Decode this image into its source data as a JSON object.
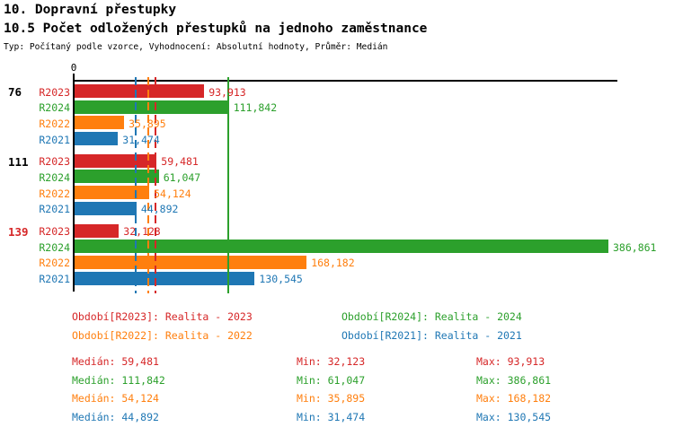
{
  "header": {
    "title1": "10. Dopravní přestupky",
    "title2": "10.5 Počet odložených přestupků na jednoho zaměstnance",
    "meta": "Typ: Počítaný podle vzorce, Vyhodnocení: Absolutní hodnoty, Průměr: Medián"
  },
  "colors": {
    "R2023": "#d62728",
    "R2024": "#2ca02c",
    "R2022": "#ff7f0e",
    "R2021": "#1f77b4",
    "axis": "#000000",
    "group_label_default": "#000000",
    "group_label_alert": "#d62728"
  },
  "chart_data": {
    "type": "bar",
    "orientation": "horizontal",
    "axis_zero_label": "0",
    "series_order": [
      "R2023",
      "R2024",
      "R2022",
      "R2021"
    ],
    "groups": [
      {
        "label": "76",
        "label_color": "#000000",
        "bars": [
          {
            "series": "R2023",
            "value": 93913,
            "display": "93,913"
          },
          {
            "series": "R2024",
            "value": 111842,
            "display": "111,842"
          },
          {
            "series": "R2022",
            "value": 35895,
            "display": "35,895"
          },
          {
            "series": "R2021",
            "value": 31474,
            "display": "31,474"
          }
        ]
      },
      {
        "label": "111",
        "label_color": "#000000",
        "bars": [
          {
            "series": "R2023",
            "value": 59481,
            "display": "59,481"
          },
          {
            "series": "R2024",
            "value": 61047,
            "display": "61,047"
          },
          {
            "series": "R2022",
            "value": 54124,
            "display": "54,124"
          },
          {
            "series": "R2021",
            "value": 44892,
            "display": "44,892"
          }
        ]
      },
      {
        "label": "139",
        "label_color": "#d62728",
        "bars": [
          {
            "series": "R2023",
            "value": 32123,
            "display": "32,123"
          },
          {
            "series": "R2024",
            "value": 386861,
            "display": "386,861"
          },
          {
            "series": "R2022",
            "value": 168182,
            "display": "168,182"
          },
          {
            "series": "R2021",
            "value": 130545,
            "display": "130,545"
          }
        ]
      }
    ],
    "median_lines": [
      {
        "series": "R2021",
        "value": 44892,
        "style": "dashed"
      },
      {
        "series": "R2022",
        "value": 54124,
        "style": "dashed"
      },
      {
        "series": "R2023",
        "value": 59481,
        "style": "dashed"
      },
      {
        "series": "R2024",
        "value": 111842,
        "style": "solid"
      }
    ]
  },
  "legend": [
    {
      "series": "R2023",
      "text": "Období[R2023]: Realita - 2023",
      "row": 0,
      "col": 0
    },
    {
      "series": "R2024",
      "text": "Období[R2024]: Realita - 2024",
      "row": 0,
      "col": 1
    },
    {
      "series": "R2022",
      "text": "Období[R2022]: Realita - 2022",
      "row": 1,
      "col": 0
    },
    {
      "series": "R2021",
      "text": "Období[R2021]: Realita - 2021",
      "row": 1,
      "col": 1
    }
  ],
  "stats": [
    {
      "series": "R2023",
      "median": "Medián: 59,481",
      "min": "Min: 32,123",
      "max": "Max: 93,913"
    },
    {
      "series": "R2024",
      "median": "Medián: 111,842",
      "min": "Min: 61,047",
      "max": "Max: 386,861"
    },
    {
      "series": "R2022",
      "median": "Medián: 54,124",
      "min": "Min: 35,895",
      "max": "Max: 168,182"
    },
    {
      "series": "R2021",
      "median": "Medián: 44,892",
      "min": "Min: 31,474",
      "max": "Max: 130,545"
    }
  ]
}
